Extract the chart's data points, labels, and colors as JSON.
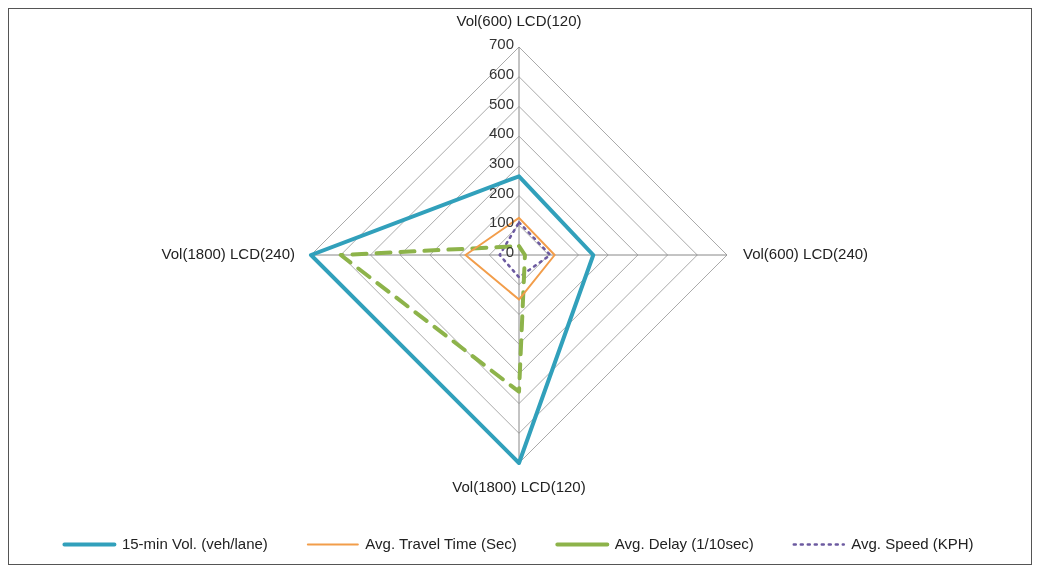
{
  "chart_data": {
    "type": "radar",
    "categories": [
      "Vol(600) LCD(120)",
      "Vol(600) LCD(240)",
      "Vol(1800) LCD(120)",
      "Vol(1800) LCD(240)"
    ],
    "ylim": [
      0,
      700
    ],
    "yticks": [
      0,
      100,
      200,
      300,
      400,
      500,
      600,
      700
    ],
    "grid": true,
    "legend": "bottom",
    "marker": "none",
    "series": [
      {
        "name": "15-min Vol. (veh/lane)",
        "color": "#31a0bb",
        "values": [
          265,
          250,
          700,
          700
        ],
        "line_style": "solid"
      },
      {
        "name": "Avg. Travel Time (Sec)",
        "color": "#f29d4a",
        "values": [
          125,
          120,
          150,
          180
        ],
        "line_style": "solid"
      },
      {
        "name": "Avg. Delay (1/10sec)",
        "color": "#8db34a",
        "values": [
          30,
          20,
          460,
          600
        ],
        "line_style": "dashed"
      },
      {
        "name": "Avg. Speed (KPH)",
        "color": "#6c5aa0",
        "values": [
          110,
          105,
          75,
          65
        ],
        "line_style": "dotted"
      }
    ]
  }
}
